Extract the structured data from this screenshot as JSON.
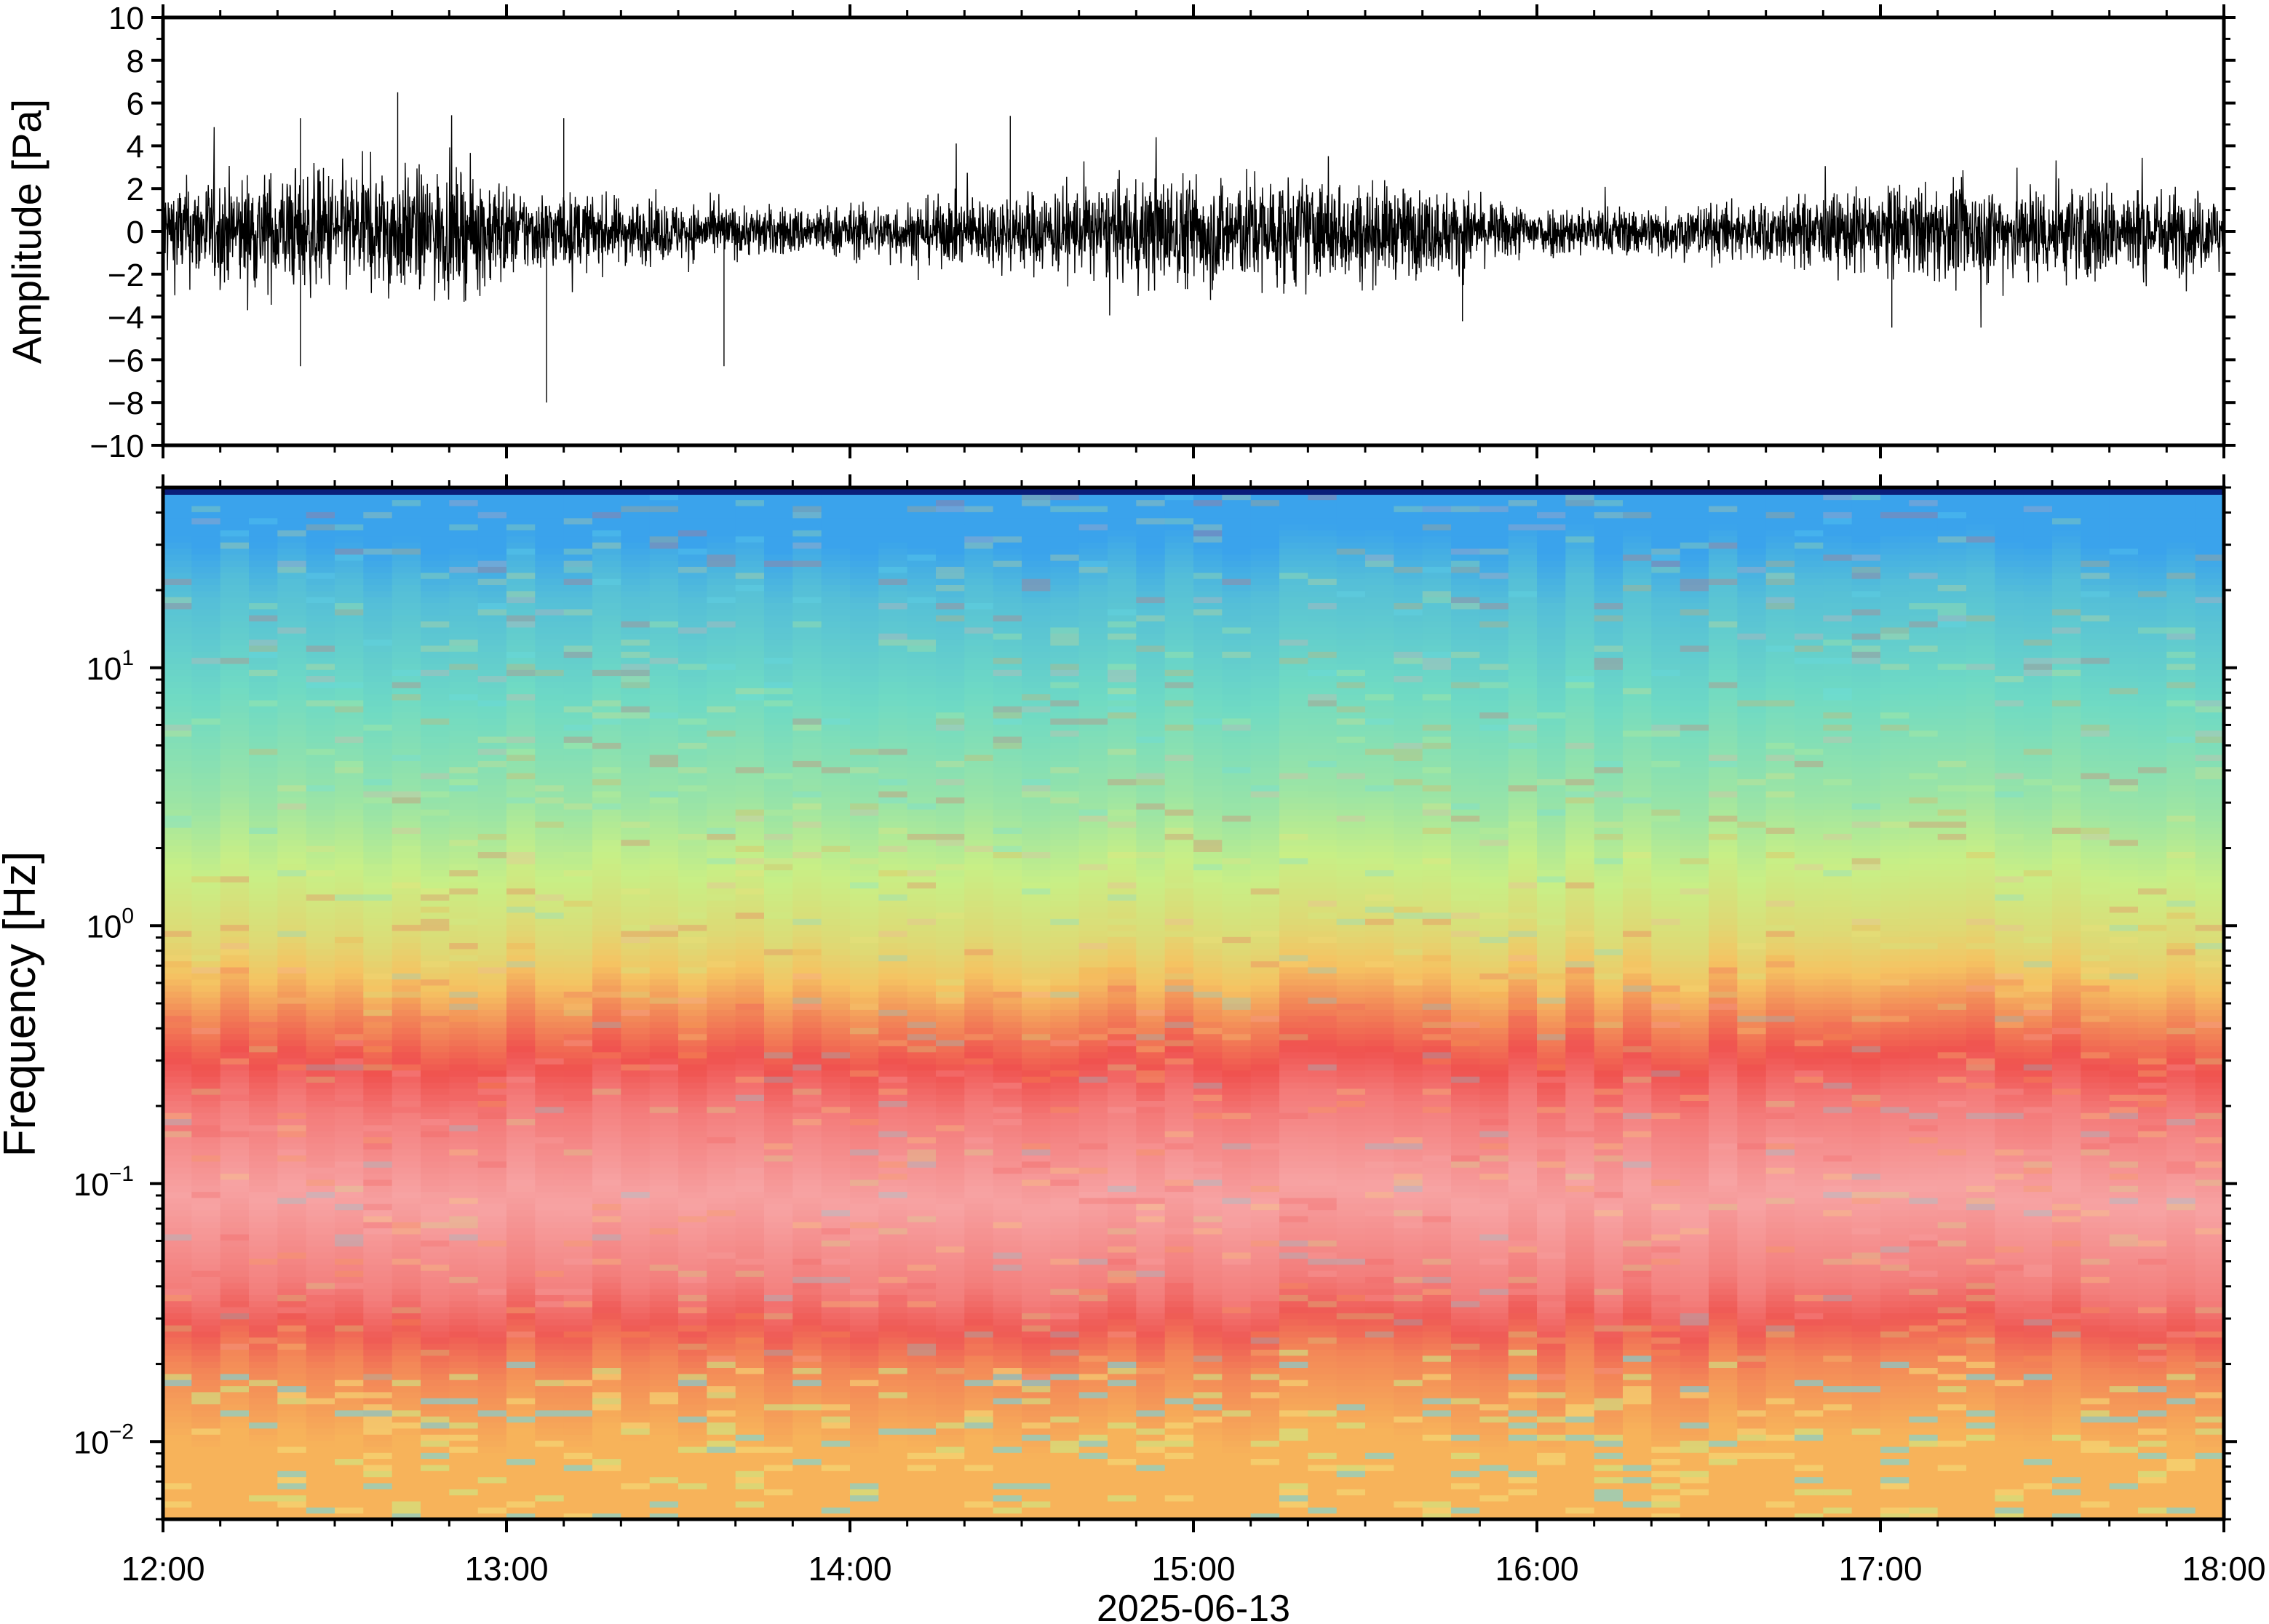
{
  "chart_data": [
    {
      "type": "line",
      "title": "",
      "xlabel": "",
      "ylabel": "Amplitude [Pa]",
      "xlim": [
        "2025-06-13 12:00",
        "2025-06-13 18:00"
      ],
      "ylim": [
        -10,
        10
      ],
      "yticks": [
        10,
        8,
        6,
        4,
        2,
        0,
        -2,
        -4,
        -6,
        -8,
        -10
      ],
      "ytick_labels": [
        "10",
        "8",
        "6",
        "4",
        "2",
        "0",
        "−2",
        "−4",
        "−6",
        "−8",
        "−10"
      ],
      "grid": false,
      "color": "#000000",
      "typical_envelope_pa": 2.5,
      "series": [
        {
          "values_description_peaks": [
            {
              "time": "12:24",
              "value": 5.3
            },
            {
              "time": "12:24",
              "value": -6.3
            },
            {
              "time": "12:41",
              "value": 6.5
            },
            {
              "time": "13:07",
              "value": -8.0
            },
            {
              "time": "13:10",
              "value": 5.3
            },
            {
              "time": "13:38",
              "value": -6.3
            },
            {
              "time": "14:28",
              "value": 5.4
            },
            {
              "time": "15:47",
              "value": -4.2
            },
            {
              "time": "17:02",
              "value": -4.5
            }
          ]
        }
      ]
    },
    {
      "type": "heatmap",
      "title": "",
      "xlabel": "2025-06-13",
      "ylabel": "Frequency [Hz]",
      "xlim": [
        "2025-06-13 12:00",
        "2025-06-13 18:00"
      ],
      "yscale": "log",
      "ylim": [
        0.005,
        50
      ],
      "xtick_labels": [
        "12:00",
        "13:00",
        "14:00",
        "15:00",
        "16:00",
        "17:00",
        "18:00"
      ],
      "yticks": [
        {
          "value": 10,
          "base": "10",
          "exp": "1"
        },
        {
          "value": 1,
          "base": "10",
          "exp": "0"
        },
        {
          "value": 0.1,
          "base": "10",
          "exp": "−1"
        },
        {
          "value": 0.01,
          "base": "10",
          "exp": "−2"
        }
      ],
      "colormap": [
        "#66ddee",
        "#c8f08a",
        "#f4e07a",
        "#f6a24d",
        "#f05a5a",
        "#f7a8a8"
      ],
      "bands_description": [
        {
          "freq_range": [
            20,
            50
          ],
          "color": "#3aa3ec"
        },
        {
          "freq_range": [
            3,
            20
          ],
          "color": "#6fdac4"
        },
        {
          "freq_range": [
            0.9,
            3
          ],
          "color": "#c8ef86"
        },
        {
          "freq_range": [
            0.45,
            0.9
          ],
          "color": "#f5c362"
        },
        {
          "freq_range": [
            0.2,
            0.45
          ],
          "color": "#f0524f"
        },
        {
          "freq_range": [
            0.04,
            0.2
          ],
          "color": "#f7a3a3"
        },
        {
          "freq_range": [
            0.02,
            0.04
          ],
          "color": "#ef5a55"
        },
        {
          "freq_range": [
            0.005,
            0.02
          ],
          "color": "#f7b35a"
        }
      ],
      "grid": false
    }
  ]
}
